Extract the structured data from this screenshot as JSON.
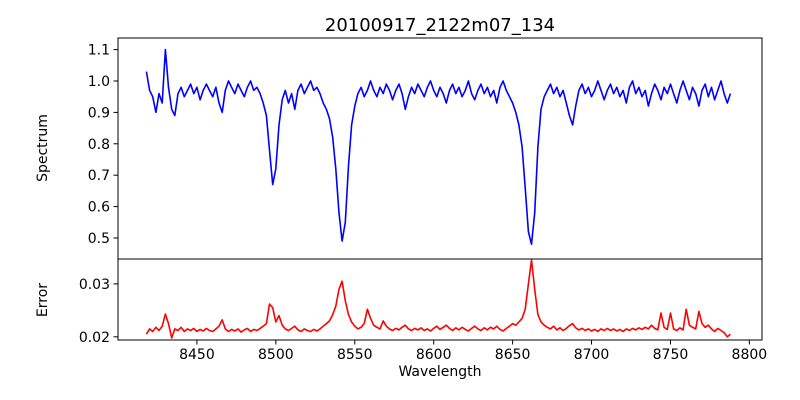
{
  "figure": {
    "title": "20100917_2122m07_134",
    "xlabel": "Wavelength",
    "background_color": "#ffffff",
    "text_color": "#000000",
    "spine_color": "#000000"
  },
  "chart_data": [
    {
      "type": "line",
      "panel": "top",
      "name": "spectrum",
      "ylabel": "Spectrum",
      "line_color": "#0000ff",
      "x_start": 8418,
      "x_step": 2,
      "xlim": [
        8400,
        8808
      ],
      "ylim": [
        0.433,
        1.137
      ],
      "yticks": [
        0.5,
        0.6,
        0.7,
        0.8,
        0.9,
        1.0,
        1.1
      ],
      "ytick_labels": [
        "0.5",
        "0.6",
        "0.7",
        "0.8",
        "0.9",
        "1.0",
        "1.1"
      ],
      "values": [
        1.03,
        0.97,
        0.95,
        0.9,
        0.96,
        0.93,
        1.1,
        0.98,
        0.91,
        0.89,
        0.96,
        0.98,
        0.95,
        0.97,
        0.99,
        0.96,
        0.98,
        0.94,
        0.97,
        0.99,
        0.97,
        0.95,
        0.98,
        0.93,
        0.9,
        0.97,
        1.0,
        0.98,
        0.96,
        0.99,
        0.97,
        0.95,
        0.98,
        1.0,
        0.97,
        0.98,
        0.96,
        0.93,
        0.89,
        0.78,
        0.67,
        0.72,
        0.86,
        0.94,
        0.97,
        0.93,
        0.96,
        0.91,
        0.97,
        0.99,
        0.96,
        0.98,
        1.0,
        0.97,
        0.98,
        0.96,
        0.93,
        0.91,
        0.88,
        0.82,
        0.72,
        0.58,
        0.49,
        0.55,
        0.73,
        0.86,
        0.92,
        0.96,
        0.98,
        0.95,
        0.97,
        1.0,
        0.97,
        0.95,
        0.98,
        0.96,
        0.99,
        0.97,
        0.94,
        0.97,
        0.99,
        0.96,
        0.91,
        0.95,
        0.98,
        0.96,
        0.99,
        0.97,
        0.95,
        0.98,
        1.0,
        0.97,
        0.95,
        0.98,
        0.96,
        0.93,
        0.97,
        0.99,
        0.96,
        0.98,
        0.95,
        0.97,
        1.0,
        0.96,
        0.94,
        0.97,
        0.99,
        0.96,
        0.98,
        0.95,
        0.97,
        0.93,
        0.98,
        1.0,
        0.97,
        0.95,
        0.93,
        0.9,
        0.86,
        0.79,
        0.66,
        0.52,
        0.48,
        0.58,
        0.79,
        0.91,
        0.95,
        0.97,
        0.99,
        0.96,
        0.98,
        0.95,
        0.97,
        0.93,
        0.89,
        0.86,
        0.92,
        0.97,
        0.99,
        0.96,
        0.98,
        0.95,
        0.97,
        1.0,
        0.97,
        0.94,
        0.97,
        0.99,
        0.96,
        0.98,
        0.95,
        0.97,
        0.93,
        0.98,
        1.0,
        0.96,
        0.98,
        0.95,
        0.97,
        0.92,
        0.96,
        0.99,
        0.97,
        0.94,
        0.98,
        0.96,
        0.99,
        0.96,
        0.93,
        0.97,
        1.0,
        0.97,
        0.94,
        0.98,
        0.96,
        0.92,
        0.97,
        0.99,
        0.95,
        0.98,
        0.94,
        0.97,
        1.0,
        0.96,
        0.93,
        0.96
      ]
    },
    {
      "type": "line",
      "panel": "bottom",
      "name": "error",
      "ylabel": "Error",
      "xlabel": "Wavelength",
      "line_color": "#ff0000",
      "x_start": 8418,
      "x_step": 2,
      "xlim": [
        8400,
        8808
      ],
      "ylim": [
        0.0194,
        0.0347
      ],
      "yticks": [
        0.02,
        0.03
      ],
      "ytick_labels": [
        "0.02",
        "0.03"
      ],
      "xticks": [
        8450,
        8500,
        8550,
        8600,
        8650,
        8700,
        8750,
        8800
      ],
      "xtick_labels": [
        "8450",
        "8500",
        "8550",
        "8600",
        "8650",
        "8700",
        "8750",
        "8800"
      ],
      "values": [
        0.0205,
        0.0215,
        0.021,
        0.0218,
        0.0212,
        0.022,
        0.0243,
        0.0225,
        0.0198,
        0.0215,
        0.0212,
        0.0218,
        0.021,
        0.0215,
        0.0212,
        0.0216,
        0.021,
        0.0214,
        0.0211,
        0.0216,
        0.0212,
        0.021,
        0.0215,
        0.022,
        0.0232,
        0.0215,
        0.021,
        0.0214,
        0.0211,
        0.0215,
        0.0209,
        0.0213,
        0.0216,
        0.021,
        0.0214,
        0.0212,
        0.0216,
        0.022,
        0.0225,
        0.0262,
        0.0255,
        0.0228,
        0.024,
        0.0222,
        0.0215,
        0.0212,
        0.0216,
        0.022,
        0.0213,
        0.021,
        0.0215,
        0.0212,
        0.021,
        0.0214,
        0.0211,
        0.0215,
        0.022,
        0.0225,
        0.023,
        0.0242,
        0.0258,
        0.029,
        0.0305,
        0.0268,
        0.0242,
        0.0228,
        0.022,
        0.0215,
        0.0218,
        0.0225,
        0.0252,
        0.0235,
        0.0222,
        0.0218,
        0.0215,
        0.023,
        0.022,
        0.0215,
        0.0212,
        0.0216,
        0.0213,
        0.0218,
        0.0222,
        0.0215,
        0.0212,
        0.0216,
        0.0213,
        0.0217,
        0.0212,
        0.0215,
        0.0211,
        0.0216,
        0.022,
        0.0214,
        0.0218,
        0.0222,
        0.0216,
        0.0212,
        0.0217,
        0.0213,
        0.0218,
        0.0214,
        0.0211,
        0.0216,
        0.022,
        0.0215,
        0.0212,
        0.0217,
        0.0213,
        0.0218,
        0.0215,
        0.022,
        0.0214,
        0.0211,
        0.0216,
        0.022,
        0.0225,
        0.0222,
        0.0228,
        0.0235,
        0.0252,
        0.03,
        0.0345,
        0.029,
        0.0242,
        0.0228,
        0.0222,
        0.0218,
        0.0215,
        0.022,
        0.0213,
        0.0217,
        0.0212,
        0.0216,
        0.0221,
        0.0225,
        0.0217,
        0.0213,
        0.0216,
        0.0212,
        0.0215,
        0.0211,
        0.0214,
        0.021,
        0.0215,
        0.0212,
        0.0216,
        0.0212,
        0.0215,
        0.0211,
        0.0214,
        0.021,
        0.0215,
        0.0212,
        0.0216,
        0.0213,
        0.0217,
        0.0214,
        0.0218,
        0.0215,
        0.0222,
        0.0216,
        0.0213,
        0.0245,
        0.0218,
        0.0214,
        0.0245,
        0.0215,
        0.0212,
        0.0217,
        0.0213,
        0.0252,
        0.0222,
        0.0218,
        0.0215,
        0.0248,
        0.0225,
        0.0218,
        0.0222,
        0.0215,
        0.021,
        0.0216,
        0.0212,
        0.0208,
        0.02,
        0.0205
      ]
    }
  ]
}
